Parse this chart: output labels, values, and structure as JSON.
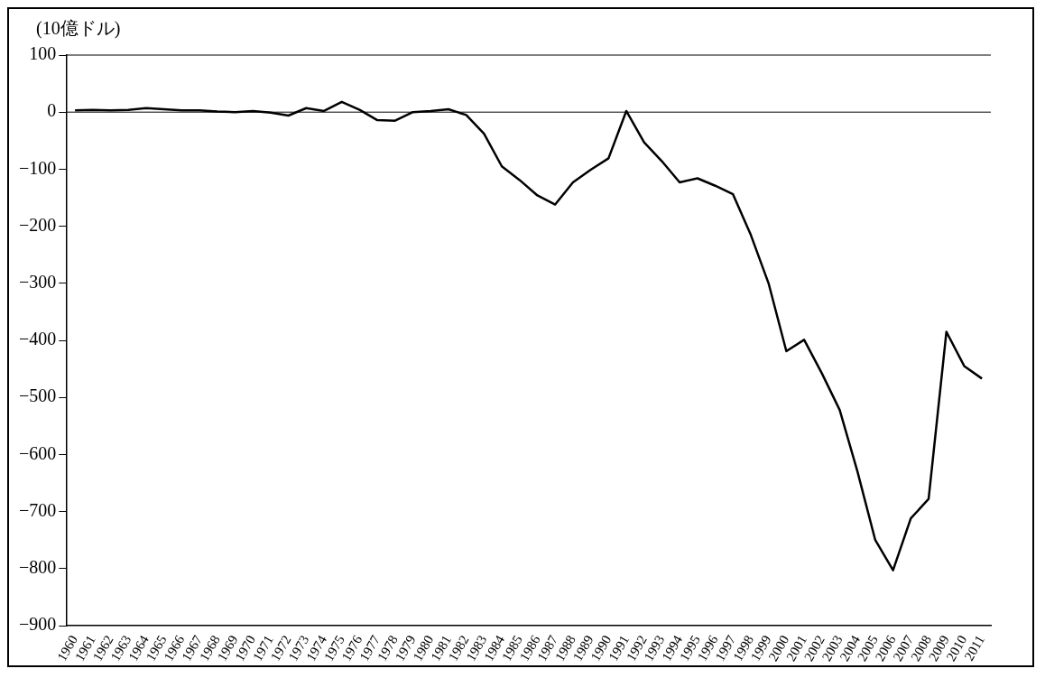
{
  "chart_data": {
    "type": "line",
    "ylabel": "(10億ドル)",
    "categories": [
      "1960",
      "1961",
      "1962",
      "1963",
      "1964",
      "1965",
      "1966",
      "1967",
      "1968",
      "1969",
      "1970",
      "1971",
      "1972",
      "1973",
      "1974",
      "1975",
      "1976",
      "1977",
      "1978",
      "1979",
      "1980",
      "1981",
      "1982",
      "1983",
      "1984",
      "1985",
      "1986",
      "1987",
      "1988",
      "1989",
      "1990",
      "1991",
      "1992",
      "1993",
      "1994",
      "1995",
      "1996",
      "1997",
      "1998",
      "1999",
      "2000",
      "2001",
      "2002",
      "2003",
      "2004",
      "2005",
      "2006",
      "2007",
      "2008",
      "2009",
      "2010",
      "2011"
    ],
    "series": [
      {
        "color": "#000000",
        "values": [
          3,
          4,
          3,
          4,
          7,
          5,
          3,
          3,
          1,
          0,
          2,
          -1,
          -6,
          7,
          2,
          18,
          4,
          -14,
          -15,
          0,
          2,
          5,
          -5,
          -38,
          -95,
          -119,
          -146,
          -162,
          -123,
          -101,
          -81,
          2,
          -53,
          -86,
          -123,
          -116,
          -129,
          -144,
          -215,
          -300,
          -419,
          -399,
          -458,
          -522,
          -630,
          -750,
          -803,
          -712,
          -678,
          -385,
          -445,
          -467
        ]
      }
    ],
    "ylim": [
      -900,
      100
    ],
    "yticks": [
      -900,
      -800,
      -700,
      -600,
      -500,
      -400,
      -300,
      -200,
      -100,
      0,
      100
    ],
    "ref_lines": [
      {
        "axis": "y",
        "value": 0,
        "color": "#000000"
      }
    ],
    "grid": false,
    "legend": false,
    "marker": "none",
    "line_style": "solid"
  }
}
